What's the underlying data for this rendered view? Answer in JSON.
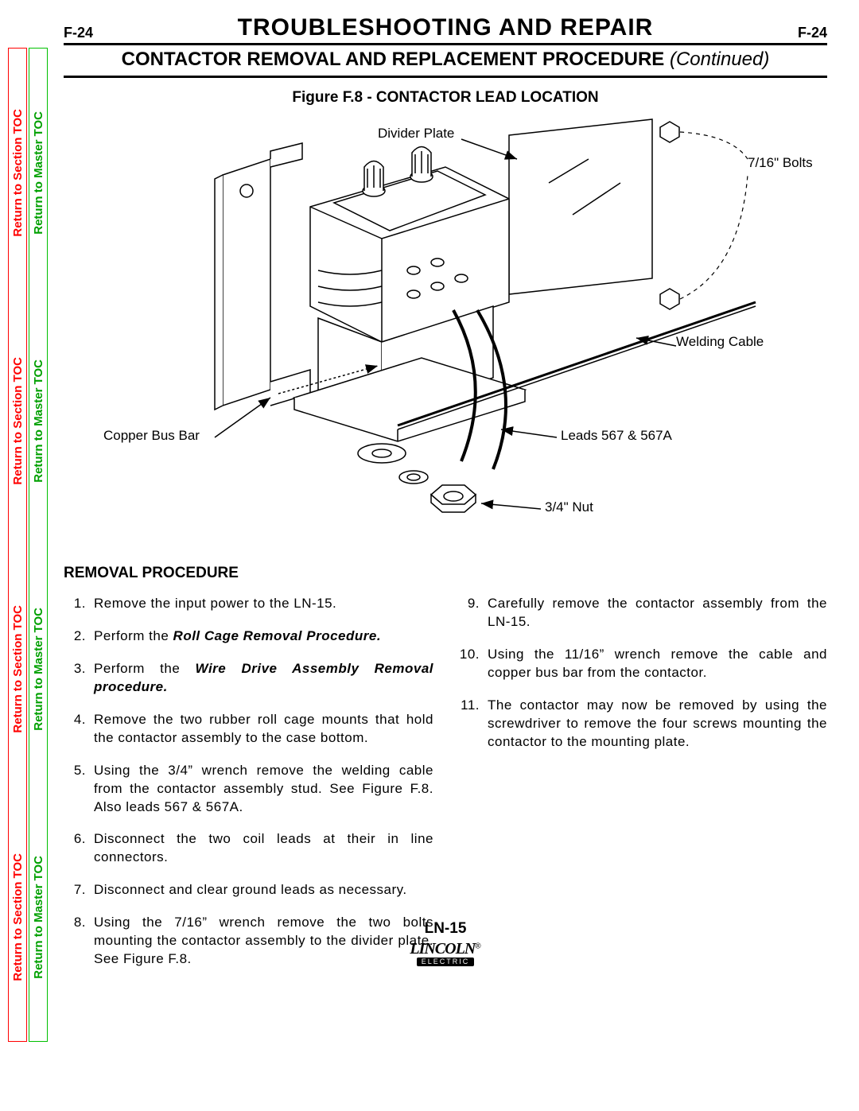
{
  "side": {
    "section_label": "Return to Section TOC",
    "master_label": "Return to Master TOC",
    "section_color": "#ff0000",
    "master_color": "#00a000",
    "repeat": 4
  },
  "header": {
    "page_num": "F-24",
    "main_title": "TROUBLESHOOTING  AND  REPAIR",
    "subtitle_main": "CONTACTOR  REMOVAL  AND  REPLACEMENT  PROCEDURE",
    "subtitle_cont": "(Continued)"
  },
  "figure": {
    "title": "Figure F.8 -  CONTACTOR LEAD LOCATION",
    "labels": {
      "divider_plate": "Divider Plate",
      "bolts": "7/16\" Bolts",
      "welding_cable": "Welding Cable",
      "copper_bus_bar": "Copper Bus Bar",
      "leads": "Leads 567 & 567A",
      "nut": "3/4\" Nut"
    },
    "stroke": "#000000",
    "dash": "4,4"
  },
  "removal": {
    "heading": "REMOVAL  PROCEDURE",
    "left_start": 1,
    "left": [
      {
        "n": "1.",
        "t": "Remove the input power to the LN-15."
      },
      {
        "n": "2.",
        "pre": "Perform the ",
        "bi": "Roll Cage Removal Procedure.",
        "post": ""
      },
      {
        "n": "3.",
        "pre": "Perform the ",
        "bi": "Wire Drive Assembly Removal procedure.",
        "post": ""
      },
      {
        "n": "4.",
        "t": "Remove the two rubber roll cage mounts that hold the contactor assembly to the case bottom."
      },
      {
        "n": "5.",
        "t": "Using the 3/4” wrench remove the welding cable from the contactor assembly stud.  See Figure F.8.  Also leads 567 & 567A."
      },
      {
        "n": "6.",
        "t": "Disconnect the two coil leads at their in line connectors."
      },
      {
        "n": "7.",
        "t": "Disconnect and clear ground leads as necessary."
      },
      {
        "n": "8.",
        "t": "Using the 7/16” wrench remove the two bolts mounting the contactor assembly to the divider plate.  See Figure F.8."
      }
    ],
    "right": [
      {
        "n": "9.",
        "t": "Carefully remove the contactor assembly from the LN-15."
      },
      {
        "n": "10.",
        "t": "Using the 11/16” wrench remove the cable and copper bus bar from the contactor."
      },
      {
        "n": "11.",
        "t": "The contactor may now be removed by using the screwdriver to remove the four screws mounting the contactor to the mounting plate."
      }
    ]
  },
  "footer": {
    "model": "LN-15",
    "brand1": "LINCOLN",
    "brand2": "ELECTRIC",
    "reg": "®"
  }
}
